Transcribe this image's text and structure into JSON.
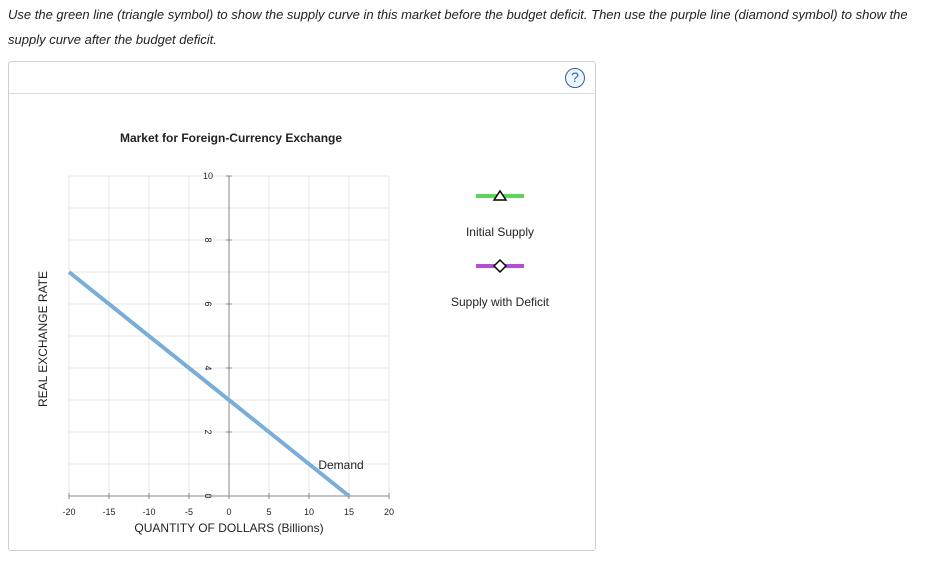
{
  "instructions": "Use the green line (triangle symbol) to show the supply curve in this market before the budget deficit. Then use the purple line (diamond symbol) to show the supply curve after the budget deficit.",
  "help_icon": {
    "icon": "question-circle-icon",
    "glyph": "?"
  },
  "palette": [
    {
      "label": "Initial Supply",
      "color": "#5ed35a",
      "symbol": "triangle"
    },
    {
      "label": "Supply with Deficit",
      "color": "#b24fd6",
      "symbol": "diamond"
    }
  ],
  "chart_data": {
    "type": "line",
    "title": "Market for Foreign-Currency Exchange",
    "xlabel": "QUANTITY OF DOLLARS (Billions)",
    "ylabel": "REAL EXCHANGE RATE",
    "xlim": [
      -20,
      20
    ],
    "ylim": [
      0,
      10
    ],
    "x_ticks": [
      "-20",
      "-15",
      "-10",
      "-5",
      "0",
      "5",
      "10",
      "15",
      "20"
    ],
    "y_ticks": [
      "0",
      "2",
      "4",
      "6",
      "8",
      "10"
    ],
    "grid": true,
    "series": [
      {
        "name": "Demand",
        "color": "#7aaed9",
        "x": [
          -20,
          15
        ],
        "y": [
          7,
          0
        ]
      }
    ]
  }
}
